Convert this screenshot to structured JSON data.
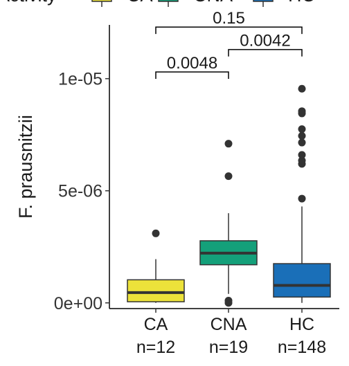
{
  "chart_data": {
    "type": "boxplot",
    "legend": {
      "title": "Activity",
      "entries": [
        {
          "label": "CA",
          "color": "#ece23a"
        },
        {
          "label": "CNA",
          "color": "#14a07a"
        },
        {
          "label": "HC",
          "color": "#1a6fb8"
        }
      ],
      "placement": "top"
    },
    "ylabel": "F. prausnitzii",
    "ylim": [
      -1e-07,
      1.32e-05
    ],
    "yticks": [
      {
        "value": 0,
        "label": "0e+00"
      },
      {
        "value": 5e-06,
        "label": "5e-06"
      },
      {
        "value": 1e-05,
        "label": "1e-05"
      }
    ],
    "categories": [
      {
        "label": "CA",
        "n_label": "n=12"
      },
      {
        "label": "CNA",
        "n_label": "n=19"
      },
      {
        "label": "HC",
        "n_label": "n=148"
      }
    ],
    "boxes": [
      {
        "group": "CA",
        "q1": 5e-08,
        "median": 4.6e-07,
        "q3": 1.03e-06,
        "whisker_low": 0,
        "whisker_high": 1.95e-06,
        "outliers": [
          3.1e-06
        ]
      },
      {
        "group": "CNA",
        "q1": 1.7e-06,
        "median": 2.22e-06,
        "q3": 2.77e-06,
        "whisker_low": 4e-07,
        "whisker_high": 4e-06,
        "outliers": [
          0,
          1e-07,
          5.65e-06,
          7.1e-06
        ]
      },
      {
        "group": "HC",
        "q1": 2.6e-07,
        "median": 7.8e-07,
        "q3": 1.75e-06,
        "whisker_low": 0,
        "whisker_high": 4.3e-06,
        "outliers": [
          4.65e-06,
          6.2e-06,
          6.35e-06,
          6.6e-06,
          7.15e-06,
          7.45e-06,
          7.75e-06,
          8.45e-06,
          8.55e-06,
          9.55e-06
        ]
      }
    ],
    "comparisons": [
      {
        "from": "CA",
        "to": "CNA",
        "label": "0.0048",
        "y": 1.03e-05
      },
      {
        "from": "CNA",
        "to": "HC",
        "label": "0.0042",
        "y": 1.13e-05
      },
      {
        "from": "CA",
        "to": "HC",
        "label": "0.15",
        "y": 1.23e-05
      }
    ],
    "grid": false
  }
}
